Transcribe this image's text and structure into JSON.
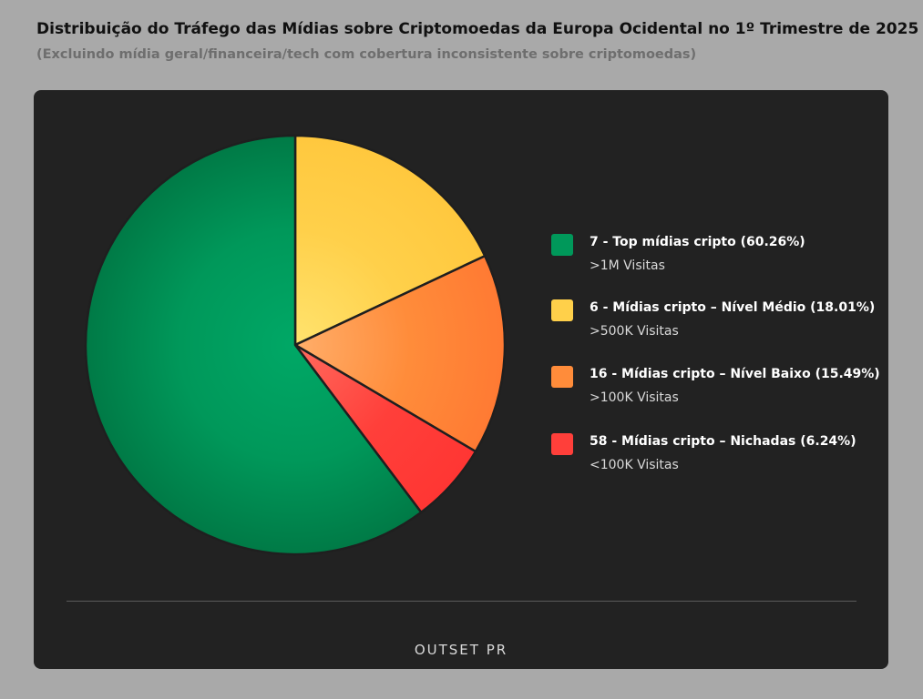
{
  "header": {
    "title": "Distribuição do Tráfego das Mídias sobre Criptomoedas da Europa Ocidental no 1º Trimestre de 2025",
    "subtitle": "(Excluindo mídia geral/financeira/tech com cobertura inconsistente sobre criptomoedas)"
  },
  "footer": {
    "logo_text": "OUTSET PR"
  },
  "legend": [
    {
      "label": "7 - Top mídias cripto (60.26%)",
      "sub": ">1M Visitas",
      "color": "#00985a"
    },
    {
      "label": "6 - Mídias cripto – Nível Médio  (18.01%)",
      "sub": ">500K Visitas",
      "color": "#ffd04a"
    },
    {
      "label": "16 - Mídias cripto – Nível Baixo  (15.49%)",
      "sub": ">100K Visitas",
      "color": "#ff8c3a"
    },
    {
      "label": "58 - Mídias cripto – Nichadas (6.24%)",
      "sub": "<100K Visitas",
      "color": "#ff3f3a"
    }
  ],
  "chart_data": {
    "type": "pie",
    "categories": [
      "7 - Top mídias cripto",
      "6 - Mídias cripto – Nível Médio",
      "16 - Mídias cripto – Nível Baixo",
      "58 - Mídias cripto – Nichadas"
    ],
    "values": [
      60.26,
      18.01,
      15.49,
      6.24
    ],
    "colors": [
      "#00985a",
      "#ffd04a",
      "#ff8c3a",
      "#ff3f3a"
    ],
    "center_colors": [
      "#00a866",
      "#ffe36e",
      "#ffae6a",
      "#ff6a5e"
    ],
    "edge_colors": [
      "#007a46",
      "#ffc83e",
      "#ff7a33",
      "#ff3633"
    ],
    "start_angle_deg": 0,
    "direction": "clockwise",
    "legend_position": "right"
  }
}
